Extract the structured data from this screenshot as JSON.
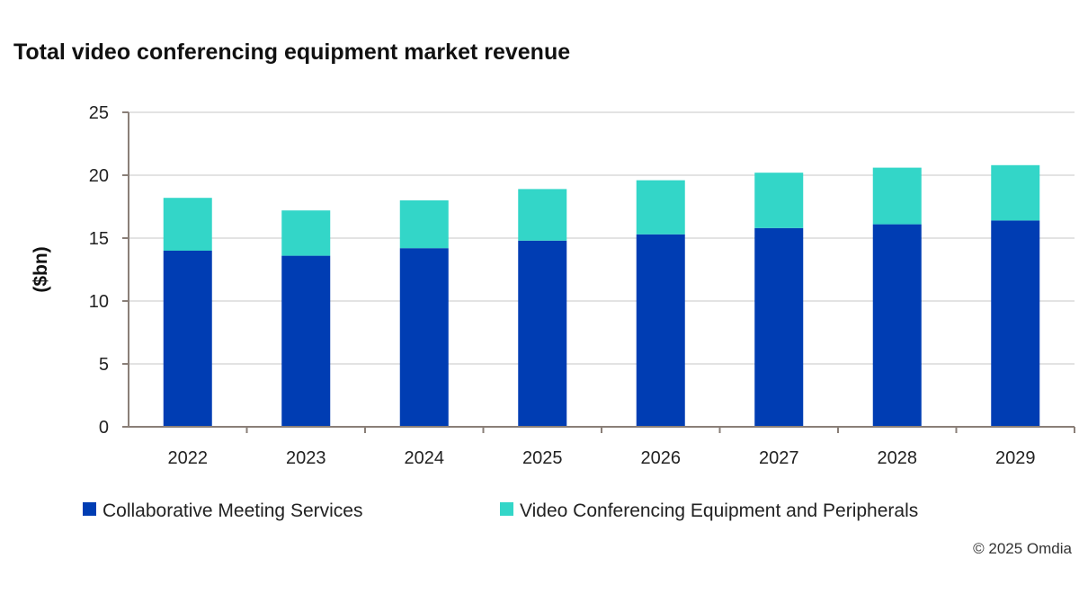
{
  "chart_data": {
    "type": "bar",
    "stacked": true,
    "title": "Total video conferencing equipment market revenue",
    "ylabel": "($bn)",
    "xlabel": "",
    "ylim": [
      0,
      25
    ],
    "yticks": [
      0,
      5,
      10,
      15,
      20,
      25
    ],
    "grid": true,
    "legend_placement": "bottom",
    "categories": [
      "2022",
      "2023",
      "2024",
      "2025",
      "2026",
      "2027",
      "2028",
      "2029"
    ],
    "series": [
      {
        "name": "Collaborative Meeting Services",
        "color": "#003DB3",
        "values": [
          14.0,
          13.6,
          14.2,
          14.8,
          15.3,
          15.8,
          16.1,
          16.4
        ]
      },
      {
        "name": "Video Conferencing Equipment and Peripherals",
        "color": "#33D6C8",
        "values": [
          4.2,
          3.6,
          3.8,
          4.1,
          4.3,
          4.4,
          4.5,
          4.4
        ]
      }
    ],
    "source": "© 2025 Omdia"
  }
}
